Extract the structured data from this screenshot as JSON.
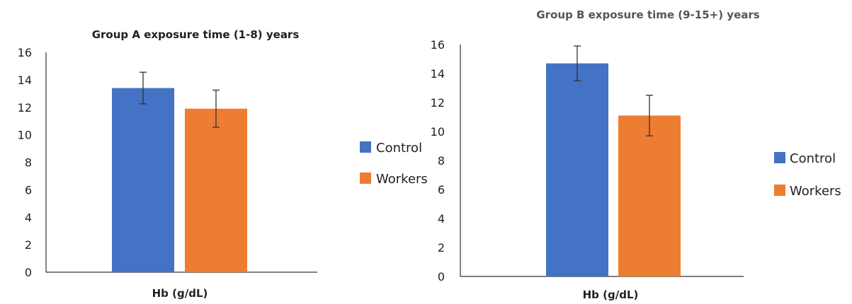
{
  "chart_data": [
    {
      "type": "bar",
      "title": "Group A exposure time (1-8) years",
      "xlabel": "Hb (g/dL)",
      "ylabel": "",
      "ylim": [
        0,
        16
      ],
      "yticks": [
        0,
        2,
        4,
        6,
        8,
        10,
        12,
        14,
        16
      ],
      "grid": false,
      "legend_position": "right",
      "series": [
        {
          "name": "Control",
          "color": "#4472C4",
          "values": [
            13.4
          ],
          "error": [
            1.15
          ]
        },
        {
          "name": "Workers",
          "color": "#ED7D31",
          "values": [
            11.9
          ],
          "error": [
            1.35
          ]
        }
      ]
    },
    {
      "type": "bar",
      "title": "Group B exposure time (9-15+) years",
      "xlabel": "Hb (g/dL)",
      "ylabel": "",
      "ylim": [
        0,
        16
      ],
      "yticks": [
        0,
        2,
        4,
        6,
        8,
        10,
        12,
        14,
        16
      ],
      "grid": false,
      "legend_position": "right",
      "series": [
        {
          "name": "Control",
          "color": "#4472C4",
          "values": [
            14.7
          ],
          "error": [
            1.2
          ]
        },
        {
          "name": "Workers",
          "color": "#ED7D31",
          "values": [
            11.1
          ],
          "error": [
            1.4
          ]
        }
      ]
    }
  ]
}
